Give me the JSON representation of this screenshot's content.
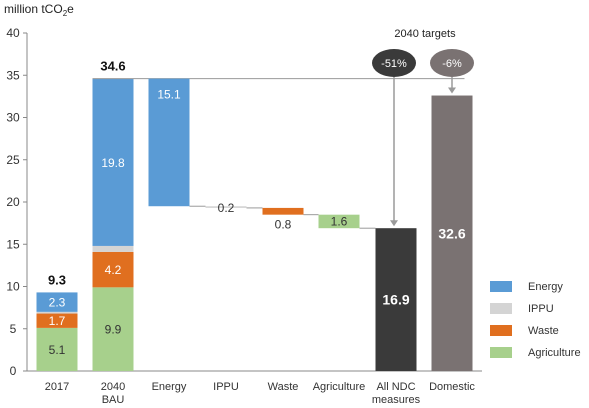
{
  "chart_data": {
    "type": "bar",
    "subtype": "waterfall",
    "ylabel_parts": [
      "million tCO",
      "2",
      "e"
    ],
    "ylim": [
      0,
      40
    ],
    "yticks": [
      0,
      5,
      10,
      15,
      20,
      25,
      30,
      35,
      40
    ],
    "grid": false,
    "legend_position": "right",
    "colors": {
      "Energy": "#5a9bd5",
      "IPPU": "#d4d4d4",
      "Waste": "#e06f1f",
      "Agriculture": "#a7d08c",
      "ndc": "#3a3a3a",
      "domestic": "#7a7272",
      "connector": "#9a9a9a",
      "badge_ndc": "#3a3a3a",
      "badge_domestic": "#7a7272"
    },
    "categories": [
      {
        "name": "2017",
        "label": [
          "2017"
        ]
      },
      {
        "name": "2040 BAU",
        "label": [
          "2040",
          "BAU"
        ]
      },
      {
        "name": "Energy",
        "label": [
          "Energy"
        ]
      },
      {
        "name": "IPPU",
        "label": [
          "IPPU"
        ]
      },
      {
        "name": "Waste",
        "label": [
          "Waste"
        ]
      },
      {
        "name": "Agriculture",
        "label": [
          "Agriculture"
        ]
      },
      {
        "name": "All NDC measures",
        "label": [
          "All NDC",
          "measures"
        ]
      },
      {
        "name": "Domestic",
        "label": [
          "Domestic"
        ]
      }
    ],
    "stacked_bars": [
      {
        "category": "2017",
        "total": 9.3,
        "segments": [
          {
            "sector": "Agriculture",
            "value": 5.1
          },
          {
            "sector": "Waste",
            "value": 1.7
          },
          {
            "sector": "IPPU",
            "value": 0.2
          },
          {
            "sector": "Energy",
            "value": 2.3
          }
        ]
      },
      {
        "category": "2040 BAU",
        "total": 34.6,
        "segments": [
          {
            "sector": "Agriculture",
            "value": 9.9
          },
          {
            "sector": "Waste",
            "value": 4.2
          },
          {
            "sector": "IPPU",
            "value": 0.7
          },
          {
            "sector": "Energy",
            "value": 19.8
          }
        ]
      }
    ],
    "reductions": [
      {
        "category": "Energy",
        "sector": "Energy",
        "from": 34.6,
        "to": 19.5,
        "label": "15.1"
      },
      {
        "category": "IPPU",
        "sector": "IPPU",
        "from": 19.5,
        "to": 19.3,
        "label": "0.2"
      },
      {
        "category": "Waste",
        "sector": "Waste",
        "from": 19.3,
        "to": 18.5,
        "label": "0.8"
      },
      {
        "category": "Agriculture",
        "sector": "Agriculture",
        "from": 18.5,
        "to": 16.9,
        "label": "1.6"
      }
    ],
    "totals": [
      {
        "category": "All NDC measures",
        "value": 16.9,
        "label": "16.9",
        "color_key": "ndc"
      },
      {
        "category": "Domestic",
        "value": 32.6,
        "label": "32.6",
        "color_key": "domestic"
      }
    ],
    "targets_title": "2040 targets",
    "target_badges": [
      {
        "category": "All NDC measures",
        "text": "-51%",
        "color_key": "badge_ndc"
      },
      {
        "category": "Domestic",
        "text": "-6%",
        "color_key": "badge_domestic"
      }
    ],
    "legend": [
      "Energy",
      "IPPU",
      "Waste",
      "Agriculture"
    ]
  }
}
